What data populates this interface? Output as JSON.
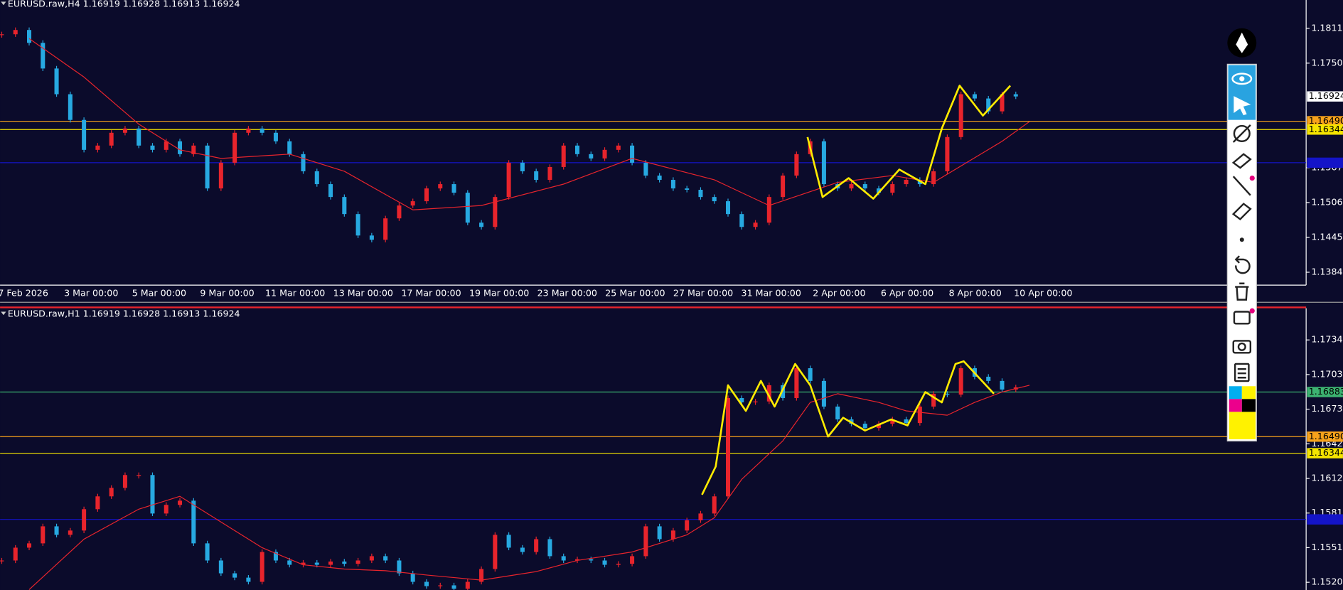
{
  "chart_data": [
    {
      "type": "candlestick",
      "title": "EURUSD.raw,H4  1.16919 1.16928 1.16913 1.16924",
      "x_labels": [
        "7 Feb 2026",
        "3 Mar 00:00",
        "5 Mar 00:00",
        "9 Mar 00:00",
        "11 Mar 00:00",
        "13 Mar 00:00",
        "17 Mar 00:00",
        "19 Mar 00:00",
        "23 Mar 00:00",
        "25 Mar 00:00",
        "27 Mar 00:00",
        "31 Mar 00:00",
        "2 Apr 00:00",
        "6 Apr 00:00",
        "8 Apr 00:00",
        "10 Apr 00:00"
      ],
      "values": [
        1.18012,
        1.18087,
        1.17862,
        1.17413,
        1.16963,
        1.16513,
        1.15989,
        1.16064,
        1.16288,
        1.16363,
        1.16064,
        1.15989,
        1.16139,
        1.15914,
        1.16064,
        1.15314,
        1.15764,
        1.16288,
        1.16363,
        1.16288,
        1.16139,
        1.15914,
        1.15614,
        1.15389,
        1.15164,
        1.14865,
        1.1449,
        1.14415,
        1.1479,
        1.15015,
        1.1509,
        1.15314,
        1.15389,
        1.15239,
        1.14715,
        1.1464,
        1.15164,
        1.15764,
        1.15614,
        1.15464,
        1.15689,
        1.16064,
        1.15914,
        1.15839,
        1.15989,
        1.16064,
        1.15764,
        1.15539,
        1.15464,
        1.15314,
        1.1529,
        1.15164,
        1.1509,
        1.14865,
        1.1464,
        1.14715,
        1.15164,
        1.15539,
        1.15914,
        1.16139,
        1.15389,
        1.15314,
        1.15389,
        1.15314,
        1.15239,
        1.15389,
        1.15464,
        1.15389,
        1.15614,
        1.16213,
        1.16963,
        1.16888,
        1.16663,
        1.16963,
        1.16924
      ],
      "colors": {
        "up": "#e8242c",
        "down": "#27a9e1"
      },
      "ylim": [
        1.13621,
        1.18612
      ],
      "yticks": [
        1.18117,
        1.17507,
        1.15677,
        1.15067,
        1.14457,
        1.13847
      ],
      "moving_average": {
        "color": "#e8242c",
        "x": [
          2,
          6,
          10,
          13,
          16,
          21,
          25,
          30,
          35,
          41,
          46,
          52,
          56,
          61,
          65,
          68,
          73,
          75
        ],
        "values": [
          1.17937,
          1.17263,
          1.16438,
          1.15989,
          1.15839,
          1.15914,
          1.15614,
          1.14939,
          1.15015,
          1.15389,
          1.15839,
          1.15464,
          1.15015,
          1.15419,
          1.15539,
          1.15419,
          1.16139,
          1.16483
        ]
      },
      "zigzag": {
        "color": "#ffeb00",
        "x": [
          58.8,
          59.9,
          61.8,
          63.6,
          65.5,
          67.4,
          68.6,
          69.9,
          71.6,
          73.6
        ],
        "values": [
          1.16213,
          1.15164,
          1.15494,
          1.15135,
          1.15644,
          1.15389,
          1.16363,
          1.17113,
          1.16588,
          1.17113
        ]
      },
      "levels": [
        {
          "value": 1.1649,
          "label": "1.16490",
          "color": "#f7a21b"
        },
        {
          "value": 1.16344,
          "label": "1.16344",
          "color": "#f5e400"
        },
        {
          "value": 1.15764,
          "color": "#1414c8"
        }
      ],
      "last_price": {
        "value": 1.16924,
        "label": "1.16924",
        "color": "#ffffff"
      }
    },
    {
      "type": "candlestick",
      "title": "EURUSD.raw,H1  1.16919 1.16928 1.16913 1.16924",
      "values": [
        1.15399,
        1.15512,
        1.1555,
        1.157,
        1.15625,
        1.15663,
        1.15851,
        1.15964,
        1.16039,
        1.16152,
        1.16152,
        1.15813,
        1.15889,
        1.15926,
        1.1555,
        1.15399,
        1.15286,
        1.15248,
        1.15211,
        1.15474,
        1.15399,
        1.15361,
        1.1538,
        1.15361,
        1.1539,
        1.1537,
        1.15399,
        1.15437,
        1.15399,
        1.15286,
        1.15211,
        1.15173,
        1.1518,
        1.1515,
        1.15211,
        1.15324,
        1.15625,
        1.15512,
        1.15474,
        1.15587,
        1.15437,
        1.15399,
        1.1541,
        1.15399,
        1.15361,
        1.1537,
        1.15437,
        1.157,
        1.15587,
        1.15663,
        1.15753,
        1.15813,
        1.15964,
        1.1683,
        1.16792,
        1.168,
        1.16943,
        1.1683,
        1.17093,
        1.16981,
        1.16755,
        1.16642,
        1.16604,
        1.16566,
        1.16604,
        1.16642,
        1.1661,
        1.16755,
        1.16868,
        1.1686,
        1.17093,
        1.17018,
        1.16981,
        1.16905,
        1.16924
      ],
      "colors": {
        "up": "#e8242c",
        "down": "#27a9e1"
      },
      "ylim": [
        1.15139,
        1.17621
      ],
      "yticks": [
        1.17342,
        1.17037,
        1.16732,
        1.16427,
        1.16122,
        1.15817,
        1.15512,
        1.15207
      ],
      "moving_average": {
        "color": "#e8242c",
        "x": [
          2,
          6,
          10,
          13,
          16,
          19,
          22,
          25,
          28,
          31,
          35,
          39,
          42,
          46,
          50,
          52,
          54,
          57,
          59,
          61,
          64,
          66,
          69,
          71,
          73,
          75
        ],
        "values": [
          1.15143,
          1.15587,
          1.15851,
          1.15964,
          1.15738,
          1.15512,
          1.15361,
          1.15324,
          1.15309,
          1.15271,
          1.15226,
          1.15301,
          1.15399,
          1.15474,
          1.15625,
          1.15776,
          1.16114,
          1.16453,
          1.16792,
          1.16868,
          1.16792,
          1.16717,
          1.16679,
          1.16792,
          1.16883,
          1.16943
        ]
      },
      "zigzag": {
        "color": "#ffeb00",
        "x": [
          51.1,
          52.1,
          53,
          54.3,
          55.4,
          56.4,
          57.9,
          59,
          60.3,
          61.4,
          63,
          64.9,
          66.1,
          67.4,
          68.6,
          69.6,
          70.2,
          72.4
        ],
        "values": [
          1.15979,
          1.16227,
          1.16943,
          1.16717,
          1.16981,
          1.16755,
          1.17131,
          1.16943,
          1.16491,
          1.16657,
          1.16544,
          1.16642,
          1.16589,
          1.16883,
          1.16792,
          1.17131,
          1.17154,
          1.16868
        ]
      },
      "levels": [
        {
          "value": 1.16883,
          "label": "1.16883",
          "color": "#3cb371"
        },
        {
          "value": 1.1649,
          "label": "1.16490",
          "color": "#f7a21b"
        },
        {
          "value": 1.16344,
          "label": "1.16344",
          "color": "#f5e400"
        },
        {
          "value": 1.15761,
          "color": "#1414c8"
        }
      ]
    }
  ]
}
